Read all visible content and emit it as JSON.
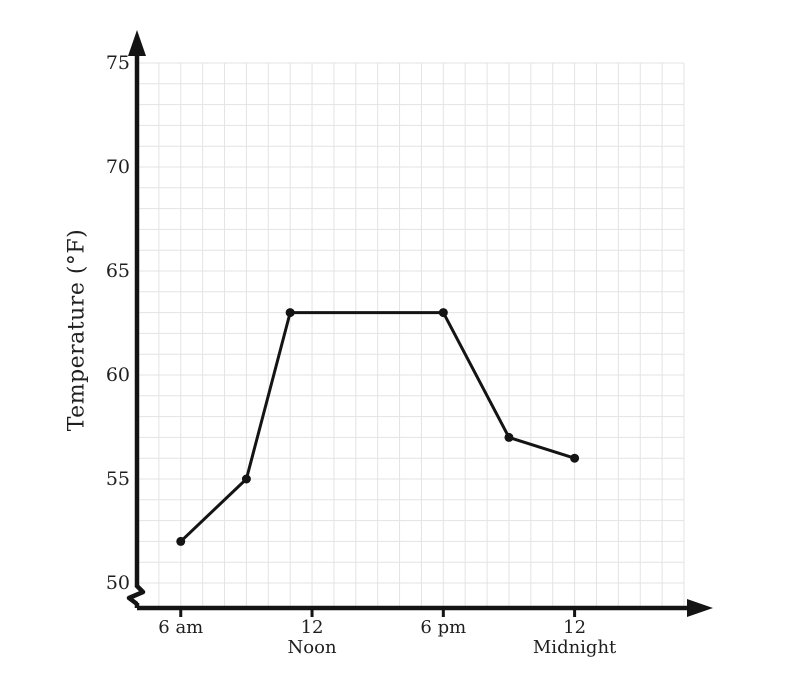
{
  "chart_data": {
    "type": "line",
    "title": "",
    "xlabel": "",
    "ylabel": "Temperature (°F)",
    "x_unit": "time of day",
    "y_unit": "°F",
    "points": [
      {
        "time": "6 am",
        "hour": 6,
        "temp": 52
      },
      {
        "time": "9 am",
        "hour": 9,
        "temp": 55
      },
      {
        "time": "11 am",
        "hour": 11,
        "temp": 63
      },
      {
        "time": "6 pm",
        "hour": 18,
        "temp": 63
      },
      {
        "time": "9 pm",
        "hour": 21,
        "temp": 57
      },
      {
        "time": "12 midnight",
        "hour": 24,
        "temp": 56
      }
    ],
    "x_ticks": [
      {
        "hour": 6,
        "lines": [
          "6 am"
        ]
      },
      {
        "hour": 12,
        "lines": [
          "12",
          "Noon"
        ]
      },
      {
        "hour": 18,
        "lines": [
          "6 pm"
        ]
      },
      {
        "hour": 24,
        "lines": [
          "12",
          "Midnight"
        ]
      }
    ],
    "y_ticks": [
      75,
      70,
      65,
      60,
      55,
      50
    ],
    "ylim": [
      50,
      75
    ],
    "x_range_hours": [
      4,
      29
    ],
    "grid": true,
    "grid_step": {
      "x_hours": 1,
      "y_degrees": 1
    },
    "axis_break_below_y": 50,
    "legend": "none",
    "colors": {
      "line": "#141414",
      "point": "#141414",
      "axis": "#141414",
      "grid": "#e3e3e3",
      "text": "#1f1f1f",
      "background": "#ffffff"
    }
  }
}
